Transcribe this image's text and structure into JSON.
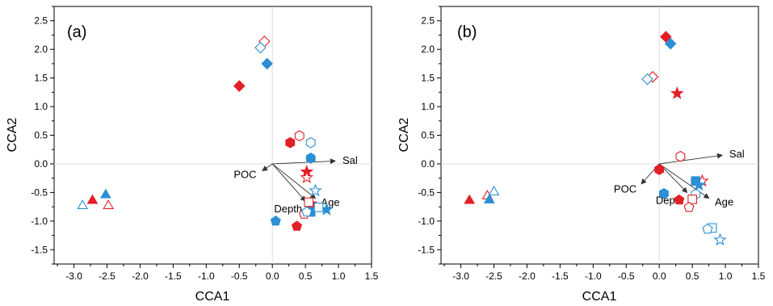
{
  "colors": {
    "red": "#e31f26",
    "blue": "#2a8fd4",
    "axis": "#000000",
    "arrow": "#333333"
  },
  "chart_data": [
    {
      "type": "scatter",
      "panel_label": "(a)",
      "xlabel": "CCA1",
      "ylabel": "CCA2",
      "xlim": [
        -3.3,
        1.5
      ],
      "ylim": [
        -1.75,
        2.75
      ],
      "xticks": [
        "-3.0",
        "-2.5",
        "-2.0",
        "-1.5",
        "-1.0",
        "-0.5",
        "0.0",
        "0.5",
        "1.0",
        "1.5"
      ],
      "yticks": [
        "-1.5",
        "-1.0",
        "-0.5",
        "0.0",
        "0.5",
        "1.0",
        "1.5",
        "2.0",
        "2.5"
      ],
      "origin_lines": true,
      "vectors": [
        {
          "label": "Sal",
          "x": 0.95,
          "y": 0.05
        },
        {
          "label": "POC",
          "x": -0.15,
          "y": -0.12
        },
        {
          "label": "Depth",
          "x": 0.5,
          "y": -0.65
        },
        {
          "label": "Age",
          "x": 0.65,
          "y": -0.6
        }
      ],
      "points": [
        {
          "x": -2.72,
          "y": -0.63,
          "shape": "triangle",
          "color": "red",
          "filled": true
        },
        {
          "x": -2.48,
          "y": -0.72,
          "shape": "triangle",
          "color": "red",
          "filled": false
        },
        {
          "x": -2.52,
          "y": -0.53,
          "shape": "triangle",
          "color": "blue",
          "filled": true
        },
        {
          "x": -2.87,
          "y": -0.72,
          "shape": "triangle",
          "color": "blue",
          "filled": false
        },
        {
          "x": -0.5,
          "y": 1.36,
          "shape": "diamond",
          "color": "red",
          "filled": true
        },
        {
          "x": -0.12,
          "y": 2.14,
          "shape": "diamond",
          "color": "red",
          "filled": false
        },
        {
          "x": -0.08,
          "y": 1.75,
          "shape": "diamond",
          "color": "blue",
          "filled": true
        },
        {
          "x": -0.18,
          "y": 2.03,
          "shape": "diamond",
          "color": "blue",
          "filled": false
        },
        {
          "x": 0.27,
          "y": 0.37,
          "shape": "hexagon",
          "color": "red",
          "filled": true
        },
        {
          "x": 0.41,
          "y": 0.49,
          "shape": "hexagon",
          "color": "red",
          "filled": false
        },
        {
          "x": 0.58,
          "y": 0.1,
          "shape": "hexagon",
          "color": "blue",
          "filled": true
        },
        {
          "x": 0.58,
          "y": 0.37,
          "shape": "hexagon",
          "color": "blue",
          "filled": false
        },
        {
          "x": 0.52,
          "y": -0.14,
          "shape": "star",
          "color": "red",
          "filled": true
        },
        {
          "x": 0.52,
          "y": -0.24,
          "shape": "star",
          "color": "red",
          "filled": false
        },
        {
          "x": 0.82,
          "y": -0.8,
          "shape": "star",
          "color": "blue",
          "filled": true
        },
        {
          "x": 0.65,
          "y": -0.47,
          "shape": "star",
          "color": "blue",
          "filled": false
        },
        {
          "x": 0.6,
          "y": -0.74,
          "shape": "square",
          "color": "red",
          "filled": true
        },
        {
          "x": 0.55,
          "y": -0.67,
          "shape": "square",
          "color": "red",
          "filled": false
        },
        {
          "x": 0.58,
          "y": -0.84,
          "shape": "square",
          "color": "blue",
          "filled": true
        },
        {
          "x": 0.7,
          "y": -0.76,
          "shape": "square",
          "color": "blue",
          "filled": false
        },
        {
          "x": 0.37,
          "y": -1.09,
          "shape": "pentagon",
          "color": "red",
          "filled": true
        },
        {
          "x": 0.48,
          "y": -0.88,
          "shape": "pentagon",
          "color": "red",
          "filled": false
        },
        {
          "x": 0.05,
          "y": -1.0,
          "shape": "pentagon",
          "color": "blue",
          "filled": true
        },
        {
          "x": 0.52,
          "y": -0.84,
          "shape": "pentagon",
          "color": "blue",
          "filled": false
        }
      ]
    },
    {
      "type": "scatter",
      "panel_label": "(b)",
      "xlabel": "CCA1",
      "ylabel": "CCA2",
      "xlim": [
        -3.3,
        1.5
      ],
      "ylim": [
        -1.75,
        2.75
      ],
      "xticks": [
        "-3.0",
        "-2.5",
        "-2.0",
        "-1.5",
        "-1.0",
        "-0.5",
        "0.0",
        "0.5",
        "1.0",
        "1.5"
      ],
      "yticks": [
        "-1.5",
        "-1.0",
        "-0.5",
        "0.0",
        "0.5",
        "1.0",
        "1.5",
        "2.0",
        "2.5"
      ],
      "origin_lines": true,
      "vectors": [
        {
          "label": "Sal",
          "x": 0.95,
          "y": 0.15
        },
        {
          "label": "POC",
          "x": -0.27,
          "y": -0.35
        },
        {
          "label": "Depth",
          "x": 0.42,
          "y": -0.5
        },
        {
          "label": "Age",
          "x": 0.75,
          "y": -0.6
        }
      ],
      "points": [
        {
          "x": -2.87,
          "y": -0.63,
          "shape": "triangle",
          "color": "red",
          "filled": true
        },
        {
          "x": -2.6,
          "y": -0.55,
          "shape": "triangle",
          "color": "red",
          "filled": false
        },
        {
          "x": -2.57,
          "y": -0.62,
          "shape": "triangle",
          "color": "blue",
          "filled": true
        },
        {
          "x": -2.5,
          "y": -0.48,
          "shape": "triangle",
          "color": "blue",
          "filled": false
        },
        {
          "x": 0.1,
          "y": 2.22,
          "shape": "diamond",
          "color": "red",
          "filled": true
        },
        {
          "x": -0.1,
          "y": 1.52,
          "shape": "diamond",
          "color": "red",
          "filled": false
        },
        {
          "x": 0.17,
          "y": 2.1,
          "shape": "diamond",
          "color": "blue",
          "filled": true
        },
        {
          "x": -0.18,
          "y": 1.48,
          "shape": "diamond",
          "color": "blue",
          "filled": false
        },
        {
          "x": 0.0,
          "y": -0.1,
          "shape": "hexagon",
          "color": "red",
          "filled": true
        },
        {
          "x": 0.32,
          "y": 0.13,
          "shape": "hexagon",
          "color": "red",
          "filled": false
        },
        {
          "x": 0.07,
          "y": -0.52,
          "shape": "hexagon",
          "color": "blue",
          "filled": true
        },
        {
          "x": 0.55,
          "y": -0.53,
          "shape": "hexagon",
          "color": "blue",
          "filled": false
        },
        {
          "x": 0.27,
          "y": 1.23,
          "shape": "star",
          "color": "red",
          "filled": true
        },
        {
          "x": 0.65,
          "y": -0.3,
          "shape": "star",
          "color": "red",
          "filled": false
        },
        {
          "x": 0.6,
          "y": -0.37,
          "shape": "star",
          "color": "blue",
          "filled": true
        },
        {
          "x": 0.92,
          "y": -1.33,
          "shape": "star",
          "color": "blue",
          "filled": false
        },
        {
          "x": 0.55,
          "y": -0.3,
          "shape": "square",
          "color": "blue",
          "filled": true
        },
        {
          "x": 0.5,
          "y": -0.62,
          "shape": "square",
          "color": "red",
          "filled": false
        },
        {
          "x": 0.8,
          "y": -1.12,
          "shape": "square",
          "color": "blue",
          "filled": false
        },
        {
          "x": 0.3,
          "y": -0.63,
          "shape": "pentagon",
          "color": "red",
          "filled": true
        },
        {
          "x": 0.45,
          "y": -0.76,
          "shape": "pentagon",
          "color": "red",
          "filled": false
        },
        {
          "x": 0.73,
          "y": -1.14,
          "shape": "pentagon",
          "color": "blue",
          "filled": false
        }
      ]
    }
  ]
}
